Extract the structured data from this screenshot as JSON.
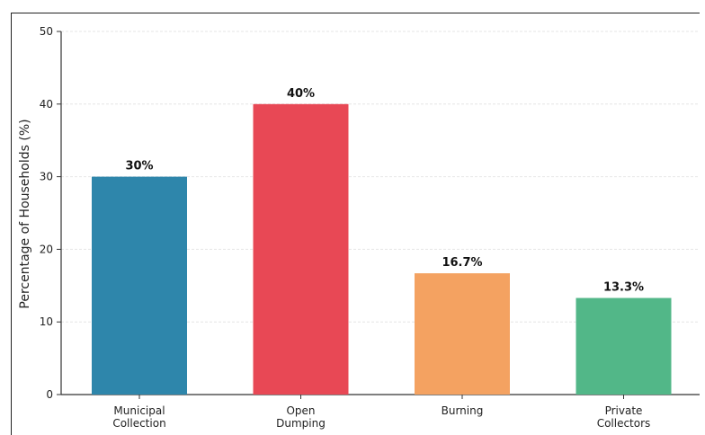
{
  "chart_data": {
    "type": "bar",
    "title": "",
    "xlabel": "",
    "ylabel": "Percentage of Households (%)",
    "ylim": [
      0,
      50
    ],
    "yticks": [
      0,
      10,
      20,
      30,
      40,
      50
    ],
    "grid": "horizontal, light",
    "categories": [
      [
        "Municipal",
        "Collection"
      ],
      [
        "Open",
        "Dumping"
      ],
      [
        "Burning"
      ],
      [
        "Private",
        "Collectors"
      ]
    ],
    "values": [
      30,
      40,
      16.7,
      13.3
    ],
    "value_labels": [
      "30%",
      "40%",
      "16.7%",
      "13.3%"
    ],
    "colors": [
      "#2e86ab",
      "#e84855",
      "#f4a261",
      "#52b788"
    ]
  }
}
